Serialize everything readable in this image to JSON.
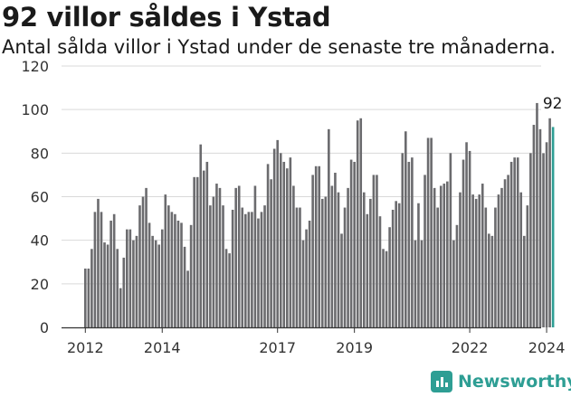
{
  "title": "92 villor såldes i Ystad",
  "subtitle": "Antal sålda villor i Ystad under de senaste tre månaderna.",
  "brand": "Newsworthy",
  "colors": {
    "bar": "#6b6b6e",
    "highlight": "#2e9e94",
    "text": "#1a1a1a"
  },
  "chart_data": {
    "type": "bar",
    "ylim": [
      0,
      120
    ],
    "yticks": [
      0,
      20,
      40,
      60,
      80,
      100,
      120
    ],
    "xticks": [
      {
        "label": "2012",
        "year": 2012
      },
      {
        "label": "2014",
        "year": 2014
      },
      {
        "label": "2017",
        "year": 2017
      },
      {
        "label": "2019",
        "year": 2019
      },
      {
        "label": "2022",
        "year": 2022
      },
      {
        "label": "2024",
        "year": 2024
      }
    ],
    "first_year": 2012,
    "highlight_label": "92",
    "values": [
      27,
      27,
      36,
      53,
      59,
      53,
      39,
      38,
      49,
      52,
      36,
      18,
      32,
      45,
      45,
      40,
      42,
      56,
      60,
      64,
      48,
      42,
      40,
      38,
      45,
      61,
      56,
      53,
      52,
      49,
      48,
      37,
      26,
      47,
      69,
      69,
      84,
      72,
      76,
      56,
      60,
      66,
      64,
      56,
      36,
      34,
      54,
      64,
      65,
      55,
      52,
      53,
      53,
      65,
      50,
      53,
      56,
      75,
      68,
      82,
      86,
      80,
      76,
      73,
      78,
      65,
      55,
      55,
      40,
      45,
      49,
      70,
      74,
      74,
      59,
      60,
      91,
      65,
      71,
      62,
      43,
      55,
      64,
      77,
      76,
      95,
      96,
      62,
      52,
      59,
      70,
      70,
      51,
      36,
      35,
      46,
      54,
      58,
      57,
      80,
      90,
      76,
      78,
      40,
      57,
      40,
      70,
      87,
      87,
      64,
      55,
      65,
      66,
      67,
      80,
      40,
      47,
      62,
      77,
      85,
      81,
      61,
      59,
      61,
      66,
      55,
      43,
      42,
      55,
      61,
      64,
      68,
      70,
      76,
      78,
      78,
      62,
      42,
      56,
      80,
      93,
      103,
      91,
      80,
      85,
      96,
      92
    ]
  }
}
